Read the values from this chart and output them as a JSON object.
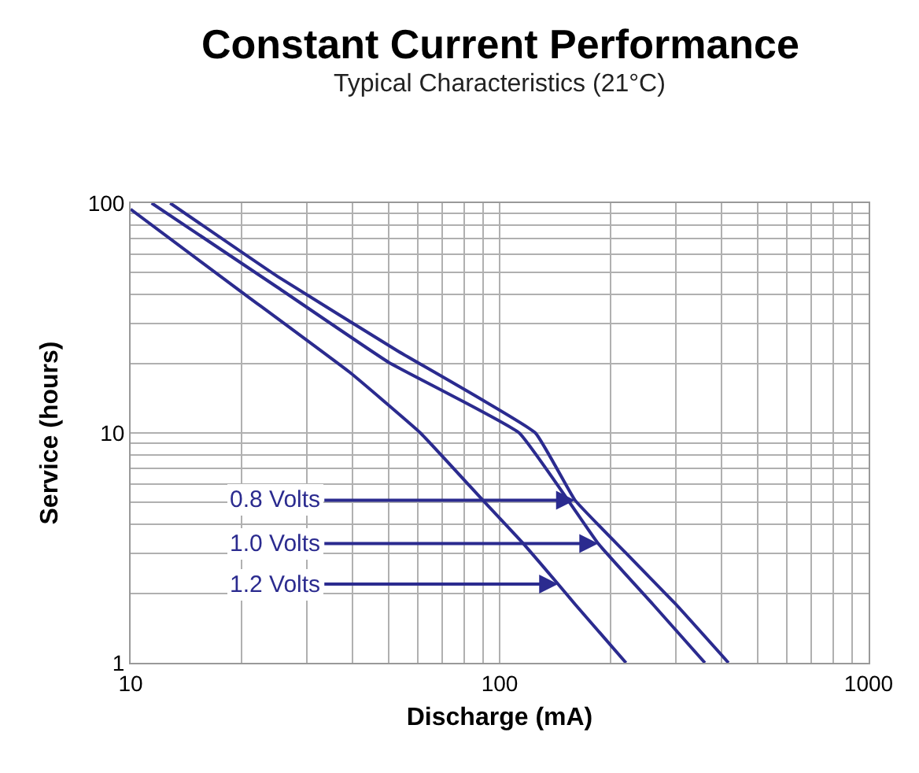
{
  "chart_data": {
    "type": "line",
    "title": "Constant Current Performance",
    "subtitle": "Typical Characteristics (21°C)",
    "xlabel": "Discharge (mA)",
    "ylabel": "Service (hours)",
    "log": "xy",
    "grid": true,
    "marker": "none",
    "line_style": "solid",
    "xlim": [
      10,
      1000
    ],
    "ylim": [
      1,
      100
    ],
    "xticks": [
      10,
      {
        "value": 20,
        "label": null
      },
      {
        "value": 30,
        "label": null
      },
      {
        "value": 40,
        "label": null
      },
      {
        "value": 50,
        "label": null
      },
      {
        "value": 60,
        "label": null
      },
      {
        "value": 70,
        "label": null
      },
      {
        "value": 80,
        "label": null
      },
      {
        "value": 90,
        "label": null
      },
      100,
      {
        "value": 200,
        "label": null
      },
      {
        "value": 300,
        "label": null
      },
      {
        "value": 400,
        "label": null
      },
      {
        "value": 500,
        "label": null
      },
      {
        "value": 600,
        "label": null
      },
      {
        "value": 700,
        "label": null
      },
      {
        "value": 800,
        "label": null
      },
      {
        "value": 900,
        "label": null
      },
      1000
    ],
    "yticks": [
      1,
      {
        "value": 2,
        "label": null
      },
      {
        "value": 3,
        "label": null
      },
      {
        "value": 4,
        "label": null
      },
      {
        "value": 5,
        "label": null
      },
      {
        "value": 6,
        "label": null
      },
      {
        "value": 7,
        "label": null
      },
      {
        "value": 8,
        "label": null
      },
      {
        "value": 9,
        "label": null
      },
      10,
      {
        "value": 20,
        "label": null
      },
      {
        "value": 30,
        "label": null
      },
      {
        "value": 40,
        "label": null
      },
      {
        "value": 50,
        "label": null
      },
      {
        "value": 60,
        "label": null
      },
      {
        "value": 70,
        "label": null
      },
      {
        "value": 80,
        "label": null
      },
      {
        "value": 90,
        "label": null
      },
      100
    ],
    "series": [
      {
        "color": "#2b2b8f",
        "x": [
          12.8,
          25,
          53,
          125,
          160,
          220,
          300,
          417
        ],
        "values": [
          100,
          48,
          22.7,
          10,
          5.1,
          3,
          1.8,
          1
        ]
      },
      {
        "color": "#2b2b8f",
        "x": [
          11.4,
          25,
          50,
          113,
          185,
          260,
          360
        ],
        "values": [
          100,
          43,
          20.3,
          10,
          3.3,
          1.8,
          1
        ]
      },
      {
        "color": "#2b2b8f",
        "x": [
          10,
          20,
          39.5,
          61,
          90,
          116,
          144,
          160,
          220
        ],
        "values": [
          94,
          41,
          18.2,
          10,
          5.1,
          3.3,
          2.2,
          1.8,
          1
        ]
      }
    ],
    "annotations": [
      {
        "text": "0.8 Volts",
        "x": 160,
        "y": 5.1
      },
      {
        "text": "1.0 Volts",
        "x": 185,
        "y": 3.3
      },
      {
        "text": "1.2 Volts",
        "x": 144,
        "y": 2.2
      }
    ]
  }
}
